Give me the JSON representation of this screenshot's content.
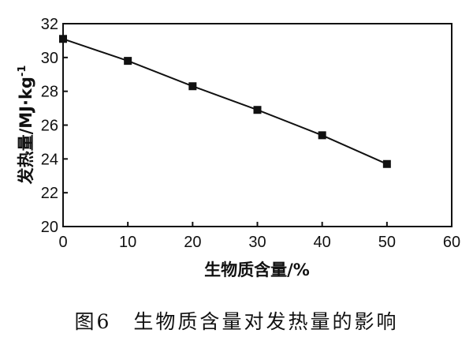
{
  "chart_data": {
    "type": "line",
    "xlabel": "生物质含量/%",
    "ylabel_main": "发热量/MJ·kg",
    "ylabel_sup": "-1",
    "xlim": [
      0,
      60
    ],
    "ylim": [
      20,
      32
    ],
    "xticks": [
      0,
      10,
      20,
      30,
      40,
      50,
      60
    ],
    "yticks": [
      20,
      22,
      24,
      26,
      28,
      30,
      32
    ],
    "x": [
      0,
      10,
      20,
      30,
      40,
      50
    ],
    "y": [
      31.1,
      29.8,
      28.3,
      26.9,
      25.4,
      23.7
    ],
    "marker": "square",
    "line_color": "#111111",
    "grid": false,
    "legend": "none"
  },
  "caption": "图6　生物质含量对发热量的影响"
}
